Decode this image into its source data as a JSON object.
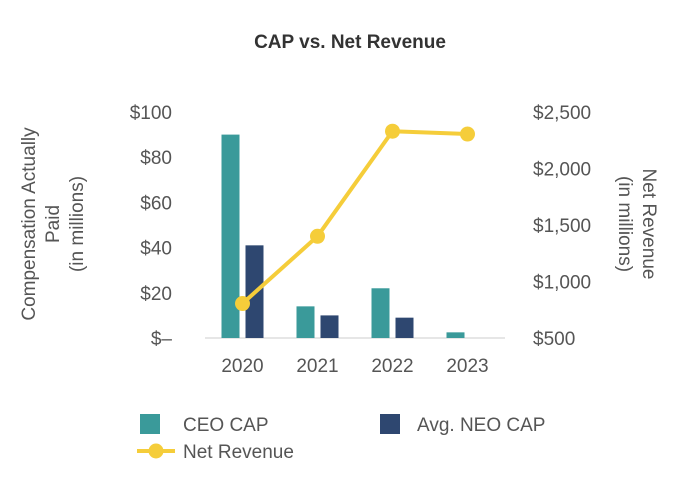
{
  "chart_data": {
    "type": "bar+line",
    "title": "CAP vs. Net Revenue",
    "categories": [
      "2020",
      "2021",
      "2022",
      "2023"
    ],
    "y_left": {
      "label_lines": [
        "Compensation Actually",
        "Paid",
        "(in millions)"
      ],
      "range": [
        0,
        100
      ],
      "ticks": [
        0,
        20,
        40,
        60,
        80,
        100
      ],
      "tick_labels": [
        "$–",
        "$20",
        "$40",
        "$60",
        "$80",
        "$100"
      ]
    },
    "y_right": {
      "label_lines": [
        "Net Revenue",
        "(in millions)"
      ],
      "range": [
        500,
        2500
      ],
      "ticks": [
        500,
        1000,
        1500,
        2000,
        2500
      ],
      "tick_labels": [
        "$500",
        "$1,000",
        "$1,500",
        "$2,000",
        "$2,500"
      ]
    },
    "series": [
      {
        "name": "CEO CAP",
        "type": "bar",
        "axis": "left",
        "color": "#3a9a9a",
        "values": [
          90,
          14,
          22,
          2.5
        ]
      },
      {
        "name": "Avg. NEO CAP",
        "type": "bar",
        "axis": "left",
        "color": "#2e4770",
        "values": [
          41,
          10,
          9,
          0
        ]
      },
      {
        "name": "Net Revenue",
        "type": "line",
        "axis": "right",
        "color": "#f5cd3a",
        "values": [
          805,
          1400,
          2330,
          2305
        ]
      }
    ],
    "grid": false,
    "legend_position": "bottom"
  }
}
